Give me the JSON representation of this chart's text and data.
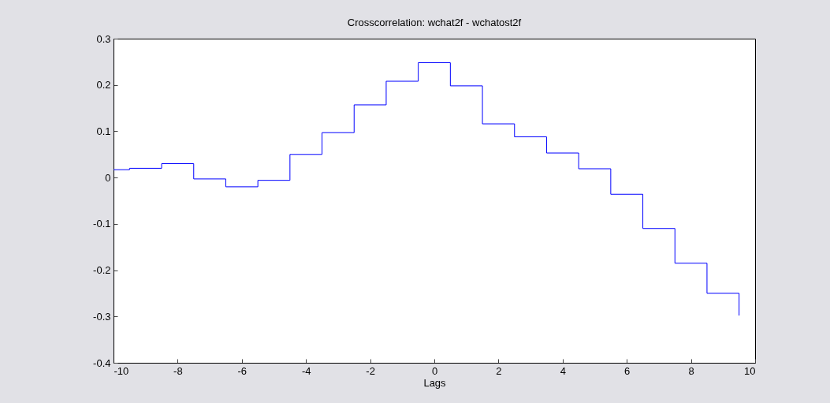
{
  "chart_data": {
    "type": "step",
    "title": "Crosscorrelation: wchat2f - wchatost2f",
    "xlabel": "Lags",
    "x": [
      -10,
      -9.5,
      -8.5,
      -7.5,
      -6.5,
      -5.5,
      -4.5,
      -3.5,
      -2.5,
      -1.5,
      -0.5,
      0.5,
      1.5,
      2.5,
      3.5,
      4.5,
      5.5,
      6.5,
      7.5,
      8.5,
      9.5
    ],
    "series": [
      {
        "color": "#0000ff",
        "values": [
          0.017,
          0.02,
          0.03,
          -0.003,
          -0.02,
          -0.006,
          0.05,
          0.097,
          0.157,
          0.208,
          0.248,
          0.198,
          0.116,
          0.088,
          0.053,
          0.019,
          -0.036,
          -0.11,
          -0.185,
          -0.25,
          -0.298
        ]
      }
    ],
    "xlim": [
      -10,
      10
    ],
    "xticks": [
      -10,
      -8,
      -6,
      -4,
      -2,
      0,
      2,
      4,
      6,
      8,
      10
    ],
    "ylim": [
      -0.4,
      0.3
    ],
    "yticks": [
      -0.4,
      -0.3,
      -0.2,
      -0.1,
      0,
      0.1,
      0.2,
      0.3
    ],
    "grid": false,
    "marker": "none",
    "line_style": "solid"
  }
}
